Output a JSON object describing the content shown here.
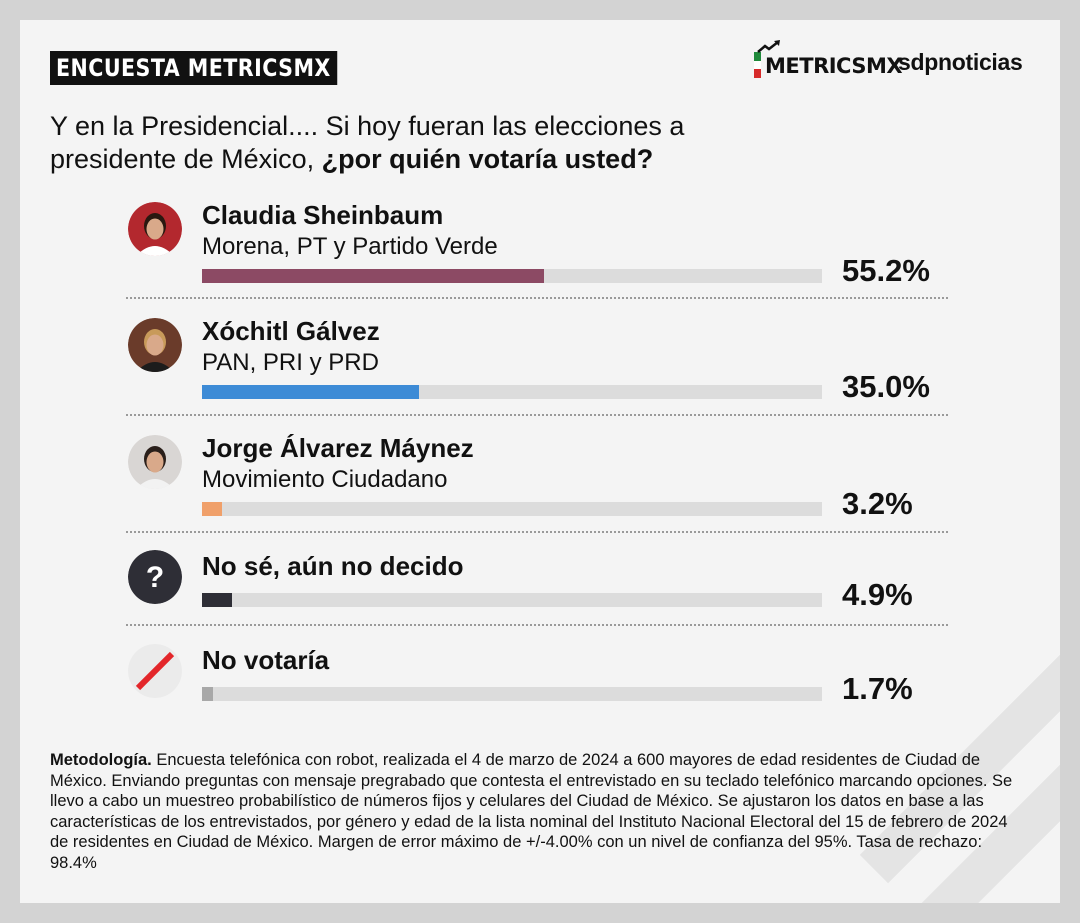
{
  "header": {
    "tag": "ENCUESTA METRICSMX",
    "brand_metrics": "METRICSMX",
    "brand_sdp": "sdpnoticias"
  },
  "question": {
    "normal": "Y en la Presidencial.... Si hoy fueran las elecciones a presidente de México, ",
    "bold": "¿por quién votaría usted?"
  },
  "chart_data": {
    "type": "bar",
    "orientation": "horizontal",
    "unit": "%",
    "xlim": [
      0,
      100
    ],
    "categories": [
      "Claudia Sheinbaum",
      "Xóchitl Gálvez",
      "Jorge Álvarez Máynez",
      "No sé, aún no decido",
      "No votaría"
    ],
    "subtitles": [
      "Morena, PT y Partido Verde",
      "PAN, PRI y PRD",
      "Movimiento Ciudadano",
      "",
      ""
    ],
    "values": [
      55.2,
      35.0,
      3.2,
      4.9,
      1.7
    ],
    "value_labels": [
      "55.2%",
      "35.0%",
      "3.2%",
      "4.9%",
      "1.7%"
    ],
    "colors": [
      "#8c4a64",
      "#3d8bd6",
      "#f0a06a",
      "#2e2e36",
      "#a8a8a8"
    ],
    "icons": [
      "claudia-sheinbaum-avatar",
      "xochitl-galvez-avatar",
      "jorge-alvarez-maynez-avatar",
      "question-icon",
      "slash-icon"
    ]
  },
  "methodology": {
    "label": "Metodología.",
    "text": " Encuesta telefónica con robot, realizada el 4 de marzo de 2024 a 600 mayores de edad residentes de Ciudad de México. Enviando preguntas con mensaje pregrabado que contesta el entrevistado en su teclado telefónico marcando opciones. Se llevo a cabo un muestreo probabilístico de números fijos y celulares del Ciudad de México. Se ajustaron los datos en base a las características de los entrevistados, por género y edad de la lista nominal del Instituto Nacional Electoral del 15 de febrero de 2024 de residentes en Ciudad de México. Margen de error máximo de +/-4.00% con un nivel de confianza del 95%. Tasa de rechazo: 98.4%"
  }
}
